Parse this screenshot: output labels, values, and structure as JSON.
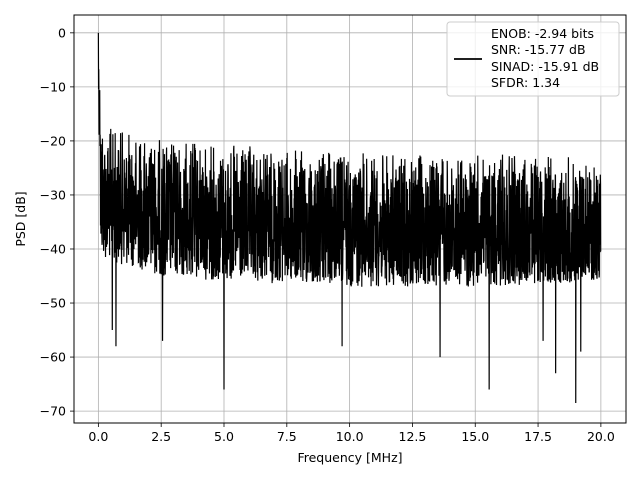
{
  "chart_data": {
    "type": "line",
    "title": "",
    "xlabel": "Frequency [MHz]",
    "ylabel": "PSD [dB]",
    "xlim": [
      -0.97,
      21.0
    ],
    "ylim": [
      -72.2,
      3.3
    ],
    "xticks": [
      0.0,
      2.5,
      5.0,
      7.5,
      10.0,
      12.5,
      15.0,
      17.5,
      20.0
    ],
    "xtick_labels": [
      "0.0",
      "2.5",
      "5.0",
      "7.5",
      "10.0",
      "12.5",
      "15.0",
      "17.5",
      "20.0"
    ],
    "yticks": [
      0,
      -10,
      -20,
      -30,
      -40,
      -50,
      -60,
      -70
    ],
    "ytick_labels": [
      "0",
      "−10",
      "−20",
      "−30",
      "−40",
      "−50",
      "−60",
      "−70"
    ],
    "grid": true,
    "legend_placement": "upper right",
    "legend_entries": [
      "ENOB: -2.94 bits",
      "SNR: -15.77 dB",
      "SINAD: -15.91 dB",
      "SFDR: 1.34"
    ],
    "series": [
      {
        "color": "#000000",
        "description": "dense noise spectrum",
        "x_range": [
          0.0,
          20.0
        ],
        "peak": {
          "x": 0.0,
          "y": 0.0
        },
        "upper_envelope": [
          [
            0.0,
            0.0
          ],
          [
            0.05,
            -8
          ],
          [
            0.15,
            -13
          ],
          [
            0.3,
            -16
          ],
          [
            1.0,
            -17
          ],
          [
            2.5,
            -18.5
          ],
          [
            5.0,
            -19.5
          ],
          [
            7.5,
            -20.5
          ],
          [
            10.0,
            -21
          ],
          [
            12.5,
            -21.5
          ],
          [
            15.0,
            -21.5
          ],
          [
            17.5,
            -21.5
          ],
          [
            20.0,
            -22
          ]
        ],
        "typical_lower": [
          [
            0.3,
            -38
          ],
          [
            2.5,
            -41
          ],
          [
            5.0,
            -42
          ],
          [
            10.0,
            -43
          ],
          [
            15.0,
            -43
          ],
          [
            20.0,
            -42
          ]
        ],
        "deep_nulls": [
          [
            0.55,
            -55
          ],
          [
            0.7,
            -58
          ],
          [
            2.55,
            -57
          ],
          [
            5.0,
            -66
          ],
          [
            9.7,
            -58
          ],
          [
            13.6,
            -60
          ],
          [
            15.55,
            -66
          ],
          [
            17.7,
            -57
          ],
          [
            18.2,
            -63
          ],
          [
            19.0,
            -68.5
          ],
          [
            19.2,
            -59
          ]
        ]
      }
    ]
  }
}
